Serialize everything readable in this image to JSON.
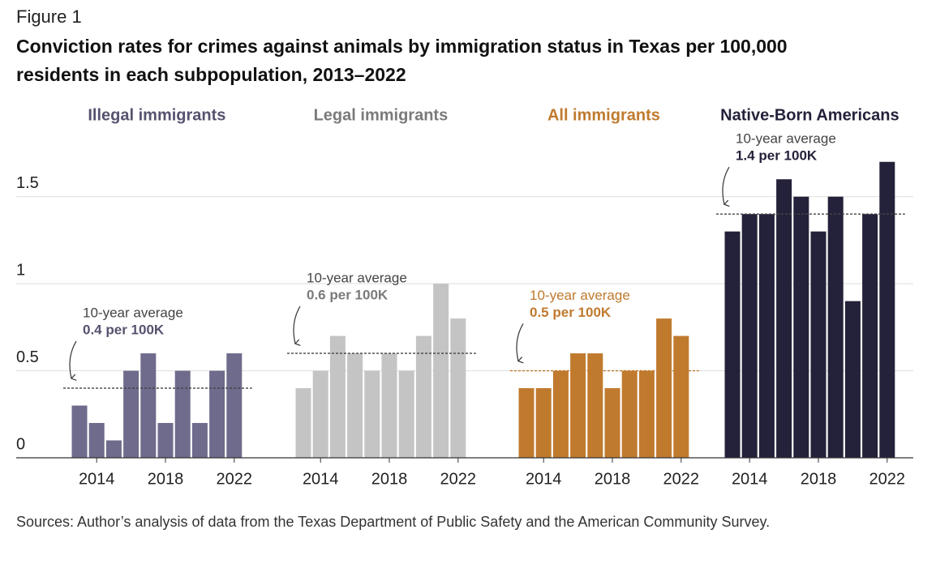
{
  "figure_label": "Figure 1",
  "title": [
    "Conviction rates for crimes against animals by immigration status in Texas per 100,000",
    "residents in each subpopulation, 2013–2022"
  ],
  "source": "Sources: Author’s analysis of data from the Texas Department of Public Safety and the American Community Survey.",
  "chart_data": [
    {
      "type": "bar",
      "title": "Illegal immigrants",
      "color": "#6f6b8c",
      "text_color": "#55526f",
      "x": [
        2013,
        2014,
        2015,
        2016,
        2017,
        2018,
        2019,
        2020,
        2021,
        2022
      ],
      "xticks": [
        2014,
        2018,
        2022
      ],
      "values": [
        0.3,
        0.2,
        0.1,
        0.5,
        0.6,
        0.2,
        0.5,
        0.2,
        0.5,
        0.6
      ],
      "ylim": [
        0,
        1.75
      ],
      "yticks": [
        0,
        0.5,
        1,
        1.5
      ],
      "grid": true,
      "annotation": "10-year average",
      "average": 0.4,
      "average_label": "0.4 per 100K"
    },
    {
      "type": "bar",
      "title": "Legal immigrants",
      "color": "#c4c4c4",
      "text_color": "#7a7a7a",
      "x": [
        2013,
        2014,
        2015,
        2016,
        2017,
        2018,
        2019,
        2020,
        2021,
        2022
      ],
      "xticks": [
        2014,
        2018,
        2022
      ],
      "values": [
        0.4,
        0.5,
        0.7,
        0.6,
        0.5,
        0.6,
        0.5,
        0.7,
        1.0,
        0.8
      ],
      "ylim": [
        0,
        1.75
      ],
      "annotation": "10-year average",
      "average": 0.6,
      "average_label": "0.6 per 100K"
    },
    {
      "type": "bar",
      "title": "All immigrants",
      "color": "#c07a2e",
      "text_color": "#c07a2e",
      "x": [
        2013,
        2014,
        2015,
        2016,
        2017,
        2018,
        2019,
        2020,
        2021,
        2022
      ],
      "xticks": [
        2014,
        2018,
        2022
      ],
      "values": [
        0.4,
        0.4,
        0.5,
        0.6,
        0.6,
        0.4,
        0.5,
        0.5,
        0.8,
        0.7
      ],
      "ylim": [
        0,
        1.75
      ],
      "annotation": "10-year average",
      "average": 0.5,
      "average_label": "0.5 per 100K"
    },
    {
      "type": "bar",
      "title": "Native-Born Americans",
      "color": "#24223a",
      "text_color": "#24223a",
      "x": [
        2013,
        2014,
        2015,
        2016,
        2017,
        2018,
        2019,
        2020,
        2021,
        2022
      ],
      "xticks": [
        2014,
        2018,
        2022
      ],
      "values": [
        1.3,
        1.4,
        1.4,
        1.6,
        1.5,
        1.3,
        1.5,
        0.9,
        1.4,
        1.7
      ],
      "ylim": [
        0,
        1.75
      ],
      "annotation": "10-year average",
      "average": 1.4,
      "average_label": "1.4 per 100K"
    }
  ]
}
